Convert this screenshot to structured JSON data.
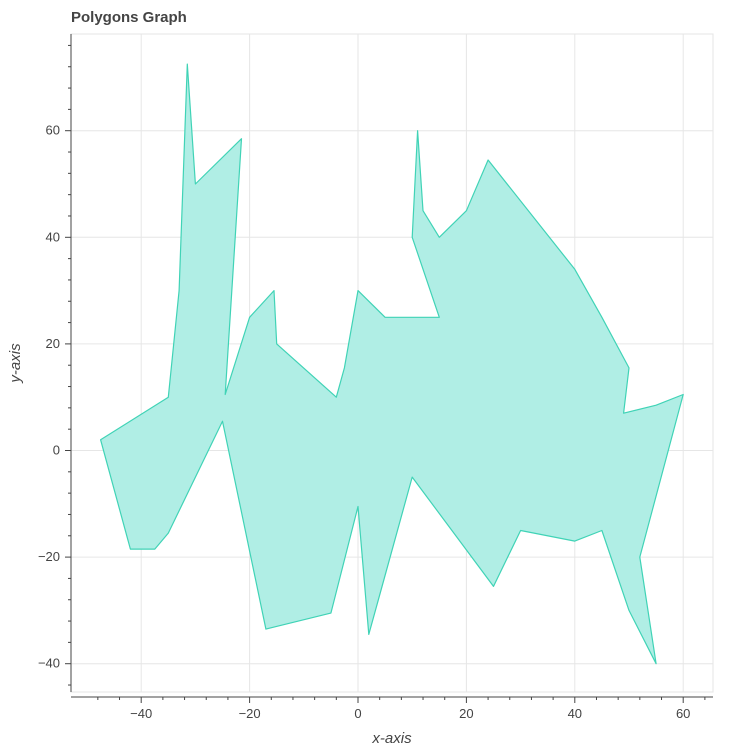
{
  "chart_data": {
    "type": "area",
    "title": "Polygons Graph",
    "xlabel": "x-axis",
    "ylabel": "y-axis",
    "xlim": [
      -52,
      65
    ],
    "ylim": [
      -45,
      78
    ],
    "xticks": [
      -40,
      -20,
      0,
      20,
      40,
      60
    ],
    "yticks": [
      -40,
      -20,
      0,
      20,
      40,
      60
    ],
    "grid": true,
    "fill_color": "#b0eee5",
    "line_color": "#40d3b6",
    "polygon": [
      {
        "x": -47.5,
        "y": 2
      },
      {
        "x": -35,
        "y": 10
      },
      {
        "x": -33,
        "y": 30
      },
      {
        "x": -31.5,
        "y": 72.5
      },
      {
        "x": -30,
        "y": 50
      },
      {
        "x": -21.5,
        "y": 58.5
      },
      {
        "x": -24.5,
        "y": 10.5
      },
      {
        "x": -20,
        "y": 25
      },
      {
        "x": -15.5,
        "y": 30
      },
      {
        "x": -15,
        "y": 20
      },
      {
        "x": -4,
        "y": 10
      },
      {
        "x": -2.5,
        "y": 15.5
      },
      {
        "x": 0,
        "y": 30
      },
      {
        "x": 5,
        "y": 25
      },
      {
        "x": 15,
        "y": 25
      },
      {
        "x": 10,
        "y": 40
      },
      {
        "x": 11,
        "y": 60
      },
      {
        "x": 12,
        "y": 45
      },
      {
        "x": 15,
        "y": 40
      },
      {
        "x": 20,
        "y": 45
      },
      {
        "x": 24,
        "y": 54.5
      },
      {
        "x": 40,
        "y": 34
      },
      {
        "x": 45,
        "y": 25
      },
      {
        "x": 50,
        "y": 15.5
      },
      {
        "x": 49,
        "y": 7
      },
      {
        "x": 55,
        "y": 8.5
      },
      {
        "x": 60,
        "y": 10.5
      },
      {
        "x": 52,
        "y": -20
      },
      {
        "x": 55,
        "y": -40
      },
      {
        "x": 50,
        "y": -30
      },
      {
        "x": 45,
        "y": -15
      },
      {
        "x": 40,
        "y": -17
      },
      {
        "x": 30,
        "y": -15
      },
      {
        "x": 25,
        "y": -25.5
      },
      {
        "x": 10,
        "y": -5
      },
      {
        "x": 2,
        "y": -34.5
      },
      {
        "x": 0,
        "y": -10.5
      },
      {
        "x": -5,
        "y": -30.5
      },
      {
        "x": -17,
        "y": -33.5
      },
      {
        "x": -25,
        "y": 5.5
      },
      {
        "x": -35,
        "y": -15.5
      },
      {
        "x": -37.5,
        "y": -18.5
      },
      {
        "x": -42,
        "y": -18.5
      },
      {
        "x": -47.5,
        "y": 2
      }
    ]
  }
}
